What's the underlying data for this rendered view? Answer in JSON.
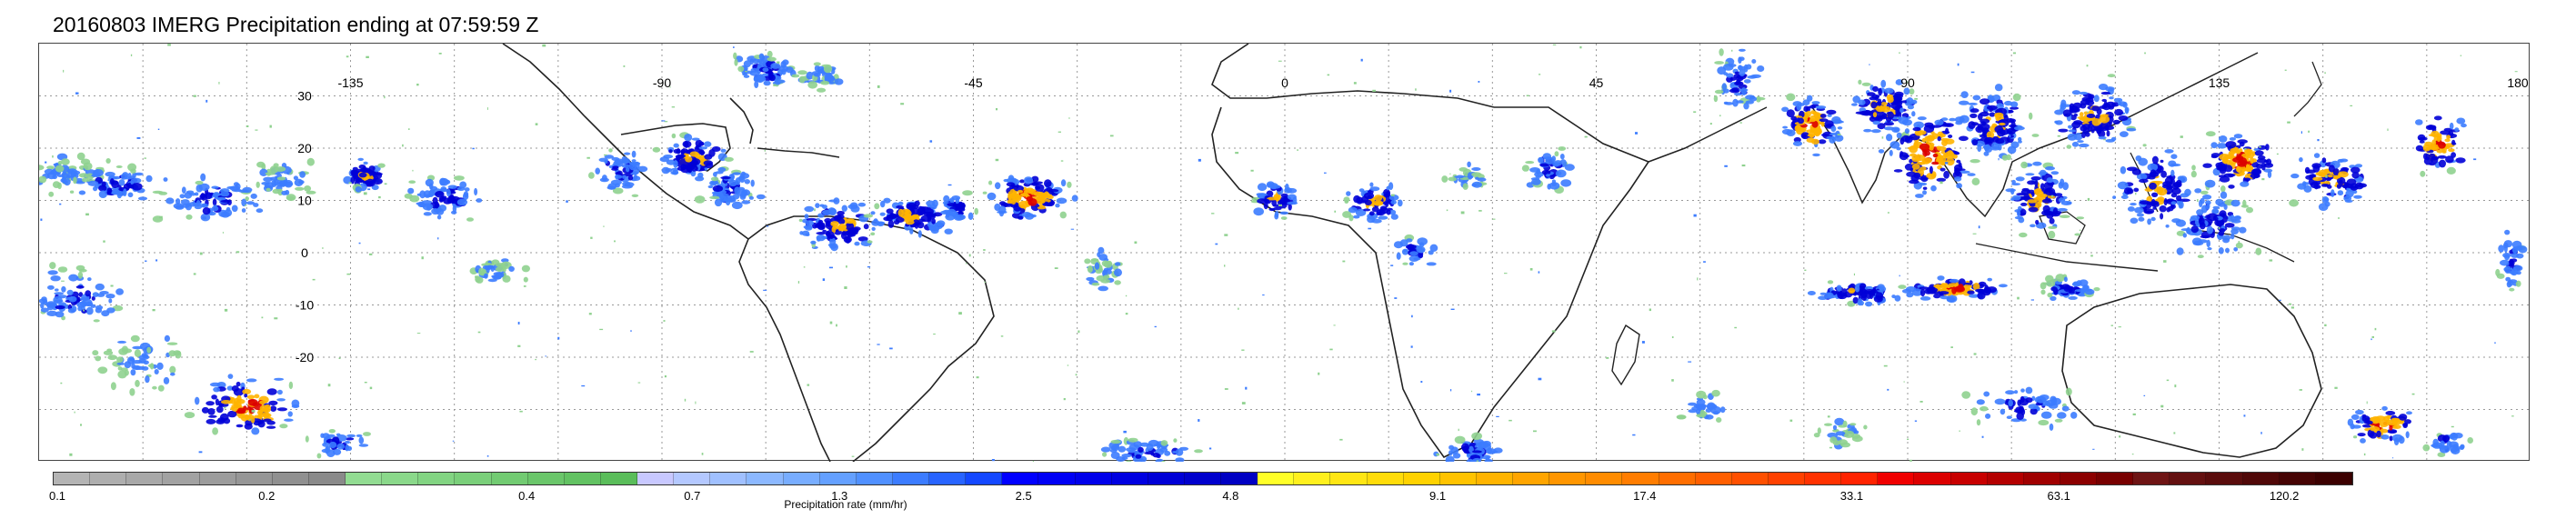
{
  "title": "20160803 IMERG Precipitation ending at 07:59:59 Z",
  "map": {
    "lon_labels": [
      "-135",
      "-90",
      "-45",
      "0",
      "45",
      "90",
      "135",
      "180"
    ],
    "lat_labels": [
      "30",
      "20",
      "10",
      "0",
      "-10",
      "-20"
    ],
    "gridline_color": "#9a9a9a",
    "coastline_color": "#222222"
  },
  "colorbar": {
    "label": "Precipitation rate (mm/hr)",
    "tick_labels": [
      "0.1",
      "0.2",
      "0.4",
      "0.7",
      "1.3",
      "2.5",
      "4.8",
      "9.1",
      "17.4",
      "33.1",
      "63.1",
      "120.2"
    ],
    "groups": [
      [
        "#b4b4b4",
        "#aeaeae",
        "#a8a8a8",
        "#a2a2a2",
        "#9c9c9c",
        "#969696",
        "#909090",
        "#8a8a8a"
      ],
      [
        "#92dc92",
        "#8ad88a",
        "#82d482",
        "#7acf7a",
        "#72cb72",
        "#6ac66a",
        "#62c262",
        "#5abd5a"
      ],
      [
        "#c8c8ff",
        "#b4c8ff",
        "#a0c0ff",
        "#8cb8ff",
        "#78adff",
        "#64a0ff",
        "#5090ff",
        "#3c7cff",
        "#2864ff",
        "#1448ff"
      ],
      [
        "#0000ff",
        "#0000f5",
        "#0000eb",
        "#0000e1",
        "#0000d7",
        "#0000cd",
        "#0000c3"
      ],
      [
        "#ffff28",
        "#fff01e",
        "#ffe614",
        "#ffdc0a",
        "#ffd200",
        "#ffc300",
        "#ffb400",
        "#ffa500",
        "#ff9600"
      ],
      [
        "#ff8c00",
        "#ff7d00",
        "#ff6e00",
        "#ff5f00",
        "#ff5000",
        "#ff4100",
        "#ff3200",
        "#ff2300"
      ],
      [
        "#f00000",
        "#dc0000",
        "#c80000",
        "#b40000",
        "#a00000",
        "#8c0000",
        "#780000"
      ],
      [
        "#6e1414",
        "#641010",
        "#5a0c0c",
        "#500808",
        "#460404",
        "#3c0000"
      ]
    ]
  },
  "precip_colors": {
    "light": "#8fd18f",
    "moderate": "#3c7cff",
    "heavy": "#0000d7",
    "intense": "#ffb400",
    "extreme": "#dc0000"
  }
}
